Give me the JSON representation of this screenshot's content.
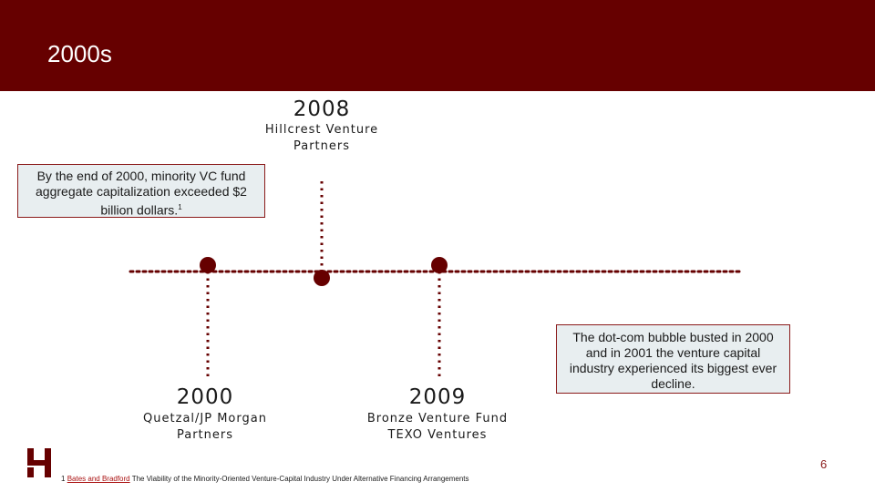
{
  "slide": {
    "title": "2000s",
    "page_number": "6",
    "accent_color": "#660000",
    "note_background": "#e8eef0"
  },
  "milestones": [
    {
      "year": "2008",
      "lines": [
        "Hillcrest Venture",
        "Partners"
      ]
    },
    {
      "year": "2000",
      "lines": [
        "Quetzal/JP Morgan",
        "Partners"
      ]
    },
    {
      "year": "2009",
      "lines": [
        "Bronze Venture Fund",
        "TEXO Ventures"
      ]
    }
  ],
  "notes": {
    "left": {
      "text": "By the end of 2000, minority VC fund aggregate capitalization exceeded $2 billion dollars.",
      "superscript": "1"
    },
    "right": {
      "text": "The dot-com bubble busted in 2000 and in 2001 the venture capital industry experienced its biggest ever decline."
    }
  },
  "footnote": {
    "number": "1",
    "link_text": "Bates and Bradford",
    "text": "The Viability of the Minority-Oriented Venture-Capital Industry Under Alternative Financing Arrangements"
  },
  "logo": {
    "icon": "h-logo-icon"
  }
}
